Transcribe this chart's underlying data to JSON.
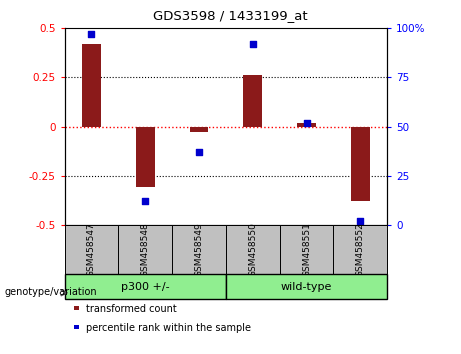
{
  "title": "GDS3598 / 1433199_at",
  "samples": [
    "GSM458547",
    "GSM458548",
    "GSM458549",
    "GSM458550",
    "GSM458551",
    "GSM458552"
  ],
  "bar_values": [
    0.42,
    -0.31,
    -0.03,
    0.26,
    0.02,
    -0.38
  ],
  "dot_values": [
    97,
    12,
    37,
    92,
    52,
    2
  ],
  "bar_color": "#8B1A1A",
  "dot_color": "#0000CD",
  "group_bg_color": "#90EE90",
  "sample_bg_color": "#C0C0C0",
  "ylim_left": [
    -0.5,
    0.5
  ],
  "ylim_right": [
    0,
    100
  ],
  "yticks_left": [
    -0.5,
    -0.25,
    0,
    0.25,
    0.5
  ],
  "yticks_right": [
    0,
    25,
    50,
    75,
    100
  ],
  "dotted_lines_black": [
    -0.25,
    0.25
  ],
  "legend_items": [
    {
      "label": "transformed count",
      "color": "#8B1A1A"
    },
    {
      "label": "percentile rank within the sample",
      "color": "#0000CD"
    }
  ],
  "bar_width": 0.35,
  "group1_label": "p300 +/-",
  "group2_label": "wild-type",
  "genotype_label": "genotype/variation"
}
